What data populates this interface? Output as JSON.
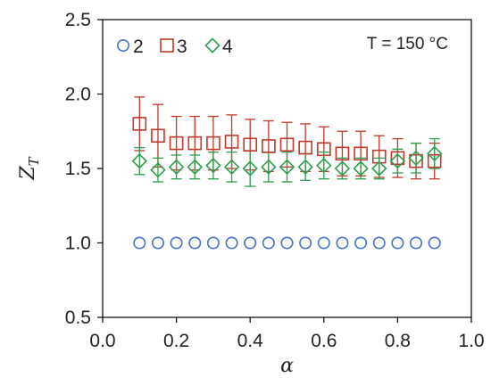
{
  "chart_data": {
    "type": "scatter",
    "xlabel": "α",
    "ylabel_main": "Z",
    "ylabel_sub": "T",
    "xlim": [
      0.0,
      1.0
    ],
    "ylim": [
      0.5,
      2.5
    ],
    "xticks": [
      "0.0",
      "0.2",
      "0.4",
      "0.6",
      "0.8",
      "1.0"
    ],
    "yticks": [
      "0.5",
      "1.0",
      "1.5",
      "2.0",
      "2.5"
    ],
    "annotation": "T = 150 °C",
    "grid": false,
    "legend_position": "top-left",
    "x": [
      0.1,
      0.15,
      0.2,
      0.25,
      0.3,
      0.35,
      0.4,
      0.45,
      0.5,
      0.55,
      0.6,
      0.65,
      0.7,
      0.75,
      0.8,
      0.85,
      0.9
    ],
    "series": [
      {
        "name": "2",
        "marker": "circle",
        "color": "#4472c4",
        "values": [
          1.0,
          1.0,
          1.0,
          1.0,
          1.0,
          1.0,
          1.0,
          1.0,
          1.0,
          1.0,
          1.0,
          1.0,
          1.0,
          1.0,
          1.0,
          1.0,
          1.0
        ],
        "errors": null
      },
      {
        "name": "3",
        "marker": "square",
        "color": "#c0392b",
        "values": [
          1.8,
          1.72,
          1.67,
          1.67,
          1.67,
          1.68,
          1.66,
          1.65,
          1.66,
          1.64,
          1.63,
          1.6,
          1.6,
          1.58,
          1.57,
          1.55,
          1.55
        ],
        "errors": [
          0.18,
          0.21,
          0.18,
          0.18,
          0.18,
          0.18,
          0.17,
          0.17,
          0.15,
          0.16,
          0.15,
          0.15,
          0.15,
          0.14,
          0.13,
          0.12,
          0.12
        ]
      },
      {
        "name": "4",
        "marker": "diamond",
        "color": "#2e9e4f",
        "values": [
          1.55,
          1.49,
          1.51,
          1.51,
          1.52,
          1.51,
          1.5,
          1.51,
          1.51,
          1.51,
          1.52,
          1.5,
          1.5,
          1.5,
          1.55,
          1.57,
          1.6
        ],
        "errors": [
          0.09,
          0.08,
          0.08,
          0.08,
          0.09,
          0.1,
          0.12,
          0.1,
          0.1,
          0.09,
          0.09,
          0.07,
          0.07,
          0.07,
          0.08,
          0.1,
          0.1
        ]
      }
    ]
  }
}
